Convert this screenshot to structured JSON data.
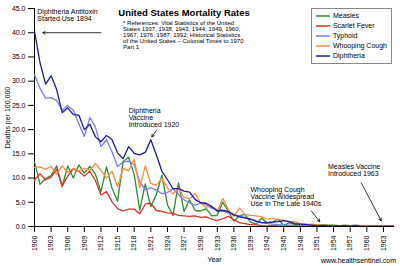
{
  "chart_data": {
    "type": "line",
    "title": "United States Mortality Rates",
    "x_label": "Year",
    "y_label": "Deaths per 100,000",
    "source": "www.healthsentinel.com",
    "annotations": [
      "Diphtheria Antitoxin Started Use 1894",
      "* References: Vital Statistics of the United States 1937, 1938, 1943, 1944, 1949, 1960, 1967, 1976, 1987, 1992; Historical Statistics of the United States – Colonial Times to 1970 Part 1",
      "Diphtheria Vaccine Introduced 1920",
      "Whooping Cough Vaccine Widespread Use In The Late 1940s",
      "Measles Vaccine Introduced 1963"
    ],
    "x": [
      1900,
      1901,
      1902,
      1903,
      1904,
      1905,
      1906,
      1907,
      1908,
      1909,
      1910,
      1911,
      1912,
      1913,
      1914,
      1915,
      1916,
      1917,
      1918,
      1919,
      1920,
      1921,
      1922,
      1923,
      1924,
      1925,
      1926,
      1927,
      1928,
      1929,
      1930,
      1931,
      1932,
      1933,
      1934,
      1935,
      1936,
      1937,
      1938,
      1939,
      1940,
      1941,
      1942,
      1943,
      1944,
      1945,
      1946,
      1947,
      1948,
      1949,
      1950,
      1951,
      1952,
      1953,
      1954,
      1955,
      1956,
      1957,
      1958,
      1959,
      1960,
      1961,
      1962,
      1963,
      1964,
      1965
    ],
    "series": [
      {
        "name": "Measles",
        "color": "#2e8b2e",
        "values": [
          13.3,
          8.7,
          9.9,
          10.5,
          12.5,
          8.2,
          12.5,
          10.0,
          12.7,
          11.0,
          12.4,
          10.8,
          7.2,
          12.3,
          7.9,
          5.2,
          13.4,
          14.3,
          10.7,
          3.4,
          8.8,
          4.1,
          6.6,
          10.6,
          4.5,
          2.3,
          9.0,
          3.1,
          5.5,
          3.3,
          3.2,
          3.7,
          2.2,
          2.3,
          5.0,
          3.1,
          1.1,
          2.2,
          2.5,
          0.9,
          0.5,
          1.7,
          0.8,
          0.9,
          1.5,
          0.2,
          0.8,
          0.4,
          0.5,
          0.5,
          0.3,
          0.4,
          0.4,
          0.3,
          0.3,
          0.2,
          0.3,
          0.2,
          0.3,
          0.2,
          0.2,
          0.2,
          0.2,
          0.2,
          0.1,
          0.1
        ]
      },
      {
        "name": "Scarlet Fever",
        "color": "#e03020",
        "values": [
          9.6,
          10.9,
          9.6,
          10.2,
          11.8,
          8.4,
          10.4,
          11.9,
          11.4,
          10.4,
          11.4,
          9.5,
          6.5,
          7.2,
          5.1,
          3.7,
          3.2,
          3.6,
          3.6,
          2.6,
          4.6,
          4.8,
          3.3,
          3.1,
          2.8,
          2.7,
          2.3,
          2.2,
          2.1,
          2.2,
          1.9,
          2.0,
          1.5,
          1.2,
          1.6,
          2.1,
          1.4,
          0.8,
          0.6,
          0.4,
          0.4,
          0.2,
          0.1,
          0.2,
          0.1,
          0.1,
          0.1,
          0.1,
          0.1,
          0.0,
          0.0,
          0.0,
          0.0,
          0.0,
          0.0,
          0.0,
          0.0,
          0.0,
          0.0,
          0.0,
          0.0,
          0.0,
          0.0,
          0.0,
          0.0,
          0.0
        ]
      },
      {
        "name": "Typhoid",
        "color": "#7b7bf0",
        "values": [
          31.3,
          28.5,
          26.5,
          26.6,
          26.0,
          24.0,
          25.0,
          24.0,
          21.2,
          18.6,
          22.5,
          20.5,
          16.5,
          17.9,
          15.4,
          12.4,
          13.3,
          13.5,
          12.8,
          9.2,
          7.6,
          8.0,
          7.5,
          6.8,
          7.0,
          7.8,
          6.6,
          5.5,
          4.9,
          4.4,
          4.8,
          4.5,
          3.8,
          3.5,
          3.3,
          2.7,
          2.5,
          2.1,
          1.9,
          1.5,
          1.1,
          0.8,
          0.6,
          0.5,
          0.4,
          0.3,
          0.3,
          0.2,
          0.2,
          0.1,
          0.1,
          0.1,
          0.1,
          0.0,
          0.0,
          0.0,
          0.0,
          0.0,
          0.0,
          0.0,
          0.0,
          0.0,
          0.0,
          0.0,
          0.0,
          0.0
        ]
      },
      {
        "name": "Whooping Cough",
        "color": "#ff8c40",
        "values": [
          12.2,
          12.3,
          11.8,
          12.4,
          10.8,
          12.5,
          11.2,
          12.0,
          11.5,
          12.0,
          11.6,
          13.0,
          11.6,
          10.0,
          11.4,
          8.2,
          12.0,
          11.5,
          13.9,
          8.0,
          12.5,
          8.9,
          8.5,
          10.0,
          8.0,
          6.7,
          8.0,
          6.0,
          5.7,
          6.8,
          4.8,
          4.0,
          4.2,
          3.2,
          5.8,
          3.5,
          2.1,
          3.8,
          2.5,
          2.3,
          2.2,
          2.0,
          1.5,
          1.7,
          1.4,
          1.3,
          1.0,
          1.0,
          0.5,
          0.4,
          0.5,
          0.4,
          0.3,
          0.2,
          0.2,
          0.2,
          0.1,
          0.1,
          0.1,
          0.1,
          0.1,
          0.1,
          0.1,
          0.1,
          0.0,
          0.0
        ]
      },
      {
        "name": "Diphtheria",
        "color": "#1a1aa0",
        "values": [
          40.3,
          33.8,
          29.4,
          31.1,
          28.3,
          23.5,
          24.5,
          23.1,
          23.0,
          20.0,
          21.1,
          18.5,
          17.5,
          18.8,
          17.9,
          15.2,
          14.0,
          16.5,
          15.1,
          14.8,
          15.3,
          17.9,
          14.8,
          11.4,
          9.7,
          7.8,
          7.8,
          7.3,
          7.1,
          5.6,
          4.9,
          4.8,
          4.1,
          3.2,
          3.3,
          3.1,
          2.4,
          2.0,
          1.8,
          1.5,
          1.1,
          0.8,
          0.8,
          0.9,
          1.0,
          1.2,
          1.0,
          0.6,
          0.5,
          0.4,
          0.3,
          0.2,
          0.2,
          0.1,
          0.1,
          0.1,
          0.1,
          0.1,
          0.1,
          0.0,
          0.0,
          0.0,
          0.0,
          0.0,
          0.0,
          0.0
        ]
      }
    ],
    "xlim": [
      1900,
      1965
    ],
    "xticks": [
      1900,
      1903,
      1906,
      1909,
      1912,
      1915,
      1918,
      1921,
      1924,
      1927,
      1930,
      1933,
      1936,
      1939,
      1942,
      1945,
      1948,
      1951,
      1954,
      1957,
      1960,
      1963
    ],
    "ylim": [
      0,
      45
    ],
    "yticks": [
      {
        "value": 0,
        "label": "0.0"
      },
      {
        "value": 5,
        "label": "5.0"
      },
      {
        "value": 10,
        "label": "10.0"
      },
      {
        "value": 15,
        "label": "15.0"
      },
      {
        "value": 20,
        "label": "20.0"
      },
      {
        "value": 25,
        "label": "25.0"
      },
      {
        "value": 30,
        "label": "30.0"
      },
      {
        "value": 35,
        "label": "35.0"
      },
      {
        "value": 40,
        "label": "40.0"
      },
      {
        "value": 45,
        "label": "45.0"
      }
    ],
    "grid": false,
    "legend": "top-right"
  }
}
